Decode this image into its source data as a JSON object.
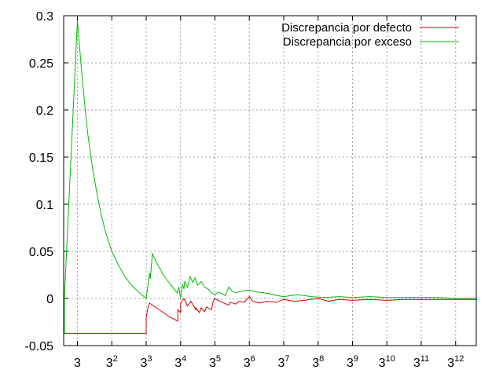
{
  "chart_data": {
    "type": "line",
    "title": "",
    "xlabel": "",
    "ylabel": "",
    "xlim": [
      0.6,
      12.6
    ],
    "ylim": [
      -0.05,
      0.3
    ],
    "grid": true,
    "legend_position": "top-right",
    "x_ticks": [
      {
        "value": 1,
        "base": "3",
        "exp": ""
      },
      {
        "value": 2,
        "base": "3",
        "exp": "2"
      },
      {
        "value": 3,
        "base": "3",
        "exp": "3"
      },
      {
        "value": 4,
        "base": "3",
        "exp": "4"
      },
      {
        "value": 5,
        "base": "3",
        "exp": "5"
      },
      {
        "value": 6,
        "base": "3",
        "exp": "6"
      },
      {
        "value": 7,
        "base": "3",
        "exp": "7"
      },
      {
        "value": 8,
        "base": "3",
        "exp": "8"
      },
      {
        "value": 9,
        "base": "3",
        "exp": "9"
      },
      {
        "value": 10,
        "base": "3",
        "exp": "10"
      },
      {
        "value": 11,
        "base": "3",
        "exp": "11"
      },
      {
        "value": 12,
        "base": "3",
        "exp": "12"
      }
    ],
    "y_ticks": [
      {
        "value": -0.05,
        "label": "-0.05"
      },
      {
        "value": 0,
        "label": "0"
      },
      {
        "value": 0.05,
        "label": "0.05"
      },
      {
        "value": 0.1,
        "label": "0.1"
      },
      {
        "value": 0.15,
        "label": "0.15"
      },
      {
        "value": 0.2,
        "label": "0.2"
      },
      {
        "value": 0.25,
        "label": "0.25"
      },
      {
        "value": 0.3,
        "label": "0.3"
      }
    ],
    "series": [
      {
        "name": "Discrepancia por defecto",
        "color": "#cc0000",
        "points": [
          [
            0.6,
            -0.037
          ],
          [
            3.0,
            -0.037
          ],
          [
            3.0,
            -0.02
          ],
          [
            3.05,
            -0.01
          ],
          [
            3.1,
            -0.005
          ],
          [
            3.3,
            -0.01
          ],
          [
            3.5,
            -0.015
          ],
          [
            3.7,
            -0.02
          ],
          [
            3.92,
            -0.024
          ],
          [
            3.92,
            -0.012
          ],
          [
            4.0,
            -0.015
          ],
          [
            4.0,
            -0.005
          ],
          [
            4.1,
            0.0
          ],
          [
            4.2,
            -0.008
          ],
          [
            4.3,
            -0.003
          ],
          [
            4.45,
            -0.012
          ],
          [
            4.45,
            -0.01
          ],
          [
            4.55,
            -0.015
          ],
          [
            4.6,
            -0.01
          ],
          [
            4.7,
            -0.014
          ],
          [
            4.75,
            -0.009
          ],
          [
            4.9,
            -0.012
          ],
          [
            4.95,
            -0.003
          ],
          [
            5.0,
            0.0
          ],
          [
            5.2,
            -0.004
          ],
          [
            5.4,
            -0.007
          ],
          [
            5.45,
            -0.004
          ],
          [
            5.6,
            -0.006
          ],
          [
            5.7,
            -0.003
          ],
          [
            5.85,
            -0.004
          ],
          [
            6.0,
            0.002
          ],
          [
            6.1,
            -0.003
          ],
          [
            6.3,
            -0.005
          ],
          [
            6.5,
            -0.003
          ],
          [
            6.8,
            -0.004
          ],
          [
            7.0,
            -0.001
          ],
          [
            7.3,
            -0.003
          ],
          [
            7.6,
            -0.002
          ],
          [
            8.0,
            0.0
          ],
          [
            8.3,
            -0.003
          ],
          [
            8.6,
            -0.001
          ],
          [
            9.0,
            -0.002
          ],
          [
            9.5,
            -0.001
          ],
          [
            10.0,
            -0.002
          ],
          [
            10.5,
            -0.001
          ],
          [
            11.0,
            -0.001
          ],
          [
            11.5,
            -0.001
          ],
          [
            12.0,
            -0.001
          ],
          [
            12.4,
            -0.001
          ],
          [
            12.6,
            -0.001
          ]
        ]
      },
      {
        "name": "Discrepancia por exceso",
        "color": "#00bb00",
        "points": [
          [
            0.6,
            -0.037
          ],
          [
            0.62,
            -0.037
          ],
          [
            0.62,
            0.0
          ],
          [
            1.0,
            0.295
          ],
          [
            1.1,
            0.25
          ],
          [
            1.2,
            0.21
          ],
          [
            1.3,
            0.175
          ],
          [
            1.4,
            0.148
          ],
          [
            1.5,
            0.125
          ],
          [
            1.6,
            0.105
          ],
          [
            1.7,
            0.088
          ],
          [
            1.8,
            0.073
          ],
          [
            1.9,
            0.061
          ],
          [
            2.0,
            0.05
          ],
          [
            2.2,
            0.035
          ],
          [
            2.4,
            0.022
          ],
          [
            2.6,
            0.013
          ],
          [
            2.8,
            0.006
          ],
          [
            3.0,
            0.0
          ],
          [
            3.1,
            0.027
          ],
          [
            3.12,
            0.021
          ],
          [
            3.18,
            0.048
          ],
          [
            3.3,
            0.038
          ],
          [
            3.5,
            0.025
          ],
          [
            3.7,
            0.015
          ],
          [
            3.9,
            0.006
          ],
          [
            3.95,
            0.012
          ],
          [
            4.0,
            0.0
          ],
          [
            4.05,
            0.015
          ],
          [
            4.1,
            0.01
          ],
          [
            4.12,
            0.018
          ],
          [
            4.2,
            0.012
          ],
          [
            4.28,
            0.023
          ],
          [
            4.35,
            0.017
          ],
          [
            4.42,
            0.022
          ],
          [
            4.5,
            0.014
          ],
          [
            4.6,
            0.018
          ],
          [
            4.7,
            0.012
          ],
          [
            4.8,
            0.01
          ],
          [
            4.9,
            0.006
          ],
          [
            5.0,
            0.004
          ],
          [
            5.1,
            0.007
          ],
          [
            5.2,
            0.005
          ],
          [
            5.3,
            0.003
          ],
          [
            5.4,
            0.012
          ],
          [
            5.5,
            0.008
          ],
          [
            5.6,
            0.006
          ],
          [
            5.8,
            0.008
          ],
          [
            6.0,
            0.009
          ],
          [
            6.2,
            0.007
          ],
          [
            6.4,
            0.006
          ],
          [
            6.6,
            0.005
          ],
          [
            6.8,
            0.003
          ],
          [
            7.0,
            0.002
          ],
          [
            7.4,
            0.004
          ],
          [
            7.8,
            0.002
          ],
          [
            8.2,
            0.001
          ],
          [
            8.6,
            0.002
          ],
          [
            9.0,
            0.001
          ],
          [
            9.5,
            0.002
          ],
          [
            10.0,
            0.001
          ],
          [
            10.5,
            0.001
          ],
          [
            11.0,
            0.001
          ],
          [
            11.5,
            0.001
          ],
          [
            12.0,
            0.0
          ],
          [
            12.6,
            0.0
          ]
        ]
      }
    ]
  }
}
